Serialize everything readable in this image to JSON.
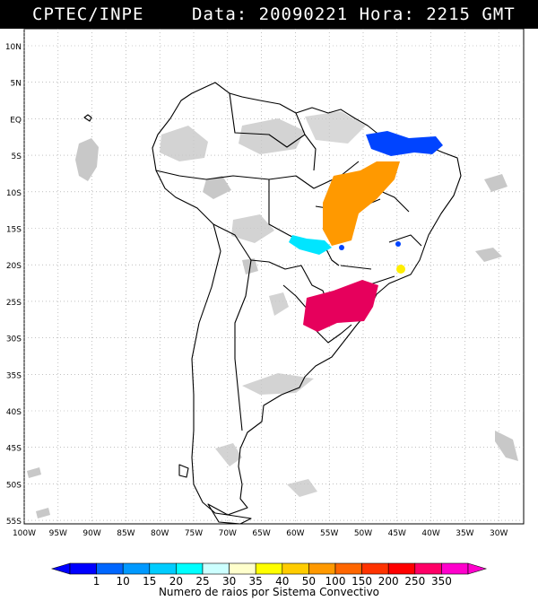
{
  "header": {
    "source": "CPTEC/INPE",
    "datetime": "Data: 20090221 Hora: 2215 GMT"
  },
  "map": {
    "lat_labels": [
      "10N",
      "5N",
      "EQ",
      "5S",
      "10S",
      "15S",
      "20S",
      "25S",
      "30S",
      "35S",
      "40S",
      "45S",
      "50S",
      "55S"
    ],
    "lon_labels": [
      "100W",
      "95W",
      "90W",
      "85W",
      "80W",
      "75W",
      "70W",
      "65W",
      "60W",
      "55W",
      "50W",
      "45W",
      "40W",
      "35W",
      "30W"
    ],
    "colors": {
      "land_border": "#000000",
      "clouds": "#c8c8c8",
      "grid": "#9a9a9a"
    }
  },
  "legend": {
    "title": "Numero de raios por Sistema Convectivo",
    "ticks": [
      "1",
      "10",
      "15",
      "20",
      "25",
      "30",
      "35",
      "40",
      "50",
      "100",
      "150",
      "200",
      "250",
      "350"
    ],
    "colors": [
      "#0000ff",
      "#0066ff",
      "#0099ff",
      "#00ccff",
      "#00ffff",
      "#ccffff",
      "#ffffcc",
      "#ffff00",
      "#ffcc00",
      "#ff9900",
      "#ff6600",
      "#ff3300",
      "#ff0000",
      "#ff0066",
      "#ff00cc"
    ]
  },
  "convective_systems": [
    {
      "region": "north-east",
      "color": "#0044ff"
    },
    {
      "region": "central",
      "color": "#ff9900"
    },
    {
      "region": "centre-west",
      "color": "#00e5ff"
    },
    {
      "region": "south",
      "color": "#e6005c"
    },
    {
      "region": "south-east",
      "color": "#ffee00"
    }
  ]
}
